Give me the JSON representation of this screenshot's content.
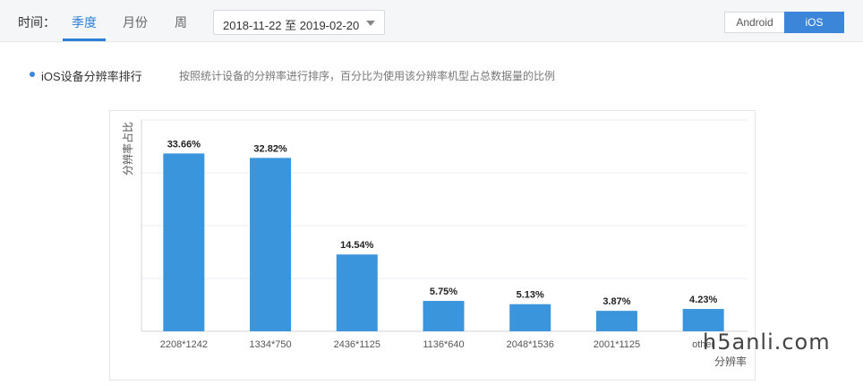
{
  "filter": {
    "time_label": "时间：",
    "periods": [
      "季度",
      "月份",
      "周"
    ],
    "active_period": "季度",
    "date_range": "2018-11-22 至 2019-02-20"
  },
  "platform": {
    "options": [
      "Android",
      "iOS"
    ],
    "selected": "iOS"
  },
  "section": {
    "title": "iOS设备分辨率排行",
    "description": "按照统计设备的分辨率进行排序，百分比为使用该分辨率机型占总数据量的比例"
  },
  "chart_data": {
    "type": "bar",
    "categories": [
      "2208*1242",
      "1334*750",
      "2436*1125",
      "1136*640",
      "2048*1536",
      "2001*1125",
      "other"
    ],
    "values": [
      33.66,
      32.82,
      14.54,
      5.75,
      5.13,
      3.87,
      4.23
    ],
    "value_labels": [
      "33.66%",
      "32.82%",
      "14.54%",
      "5.75%",
      "5.13%",
      "3.87%",
      "4.23%"
    ],
    "xlabel": "分辨率",
    "ylabel": "分辨率占比",
    "ylim": [
      0,
      40
    ],
    "grid": true,
    "bar_color": "#3a95dc"
  },
  "watermark": "h5anli.com"
}
